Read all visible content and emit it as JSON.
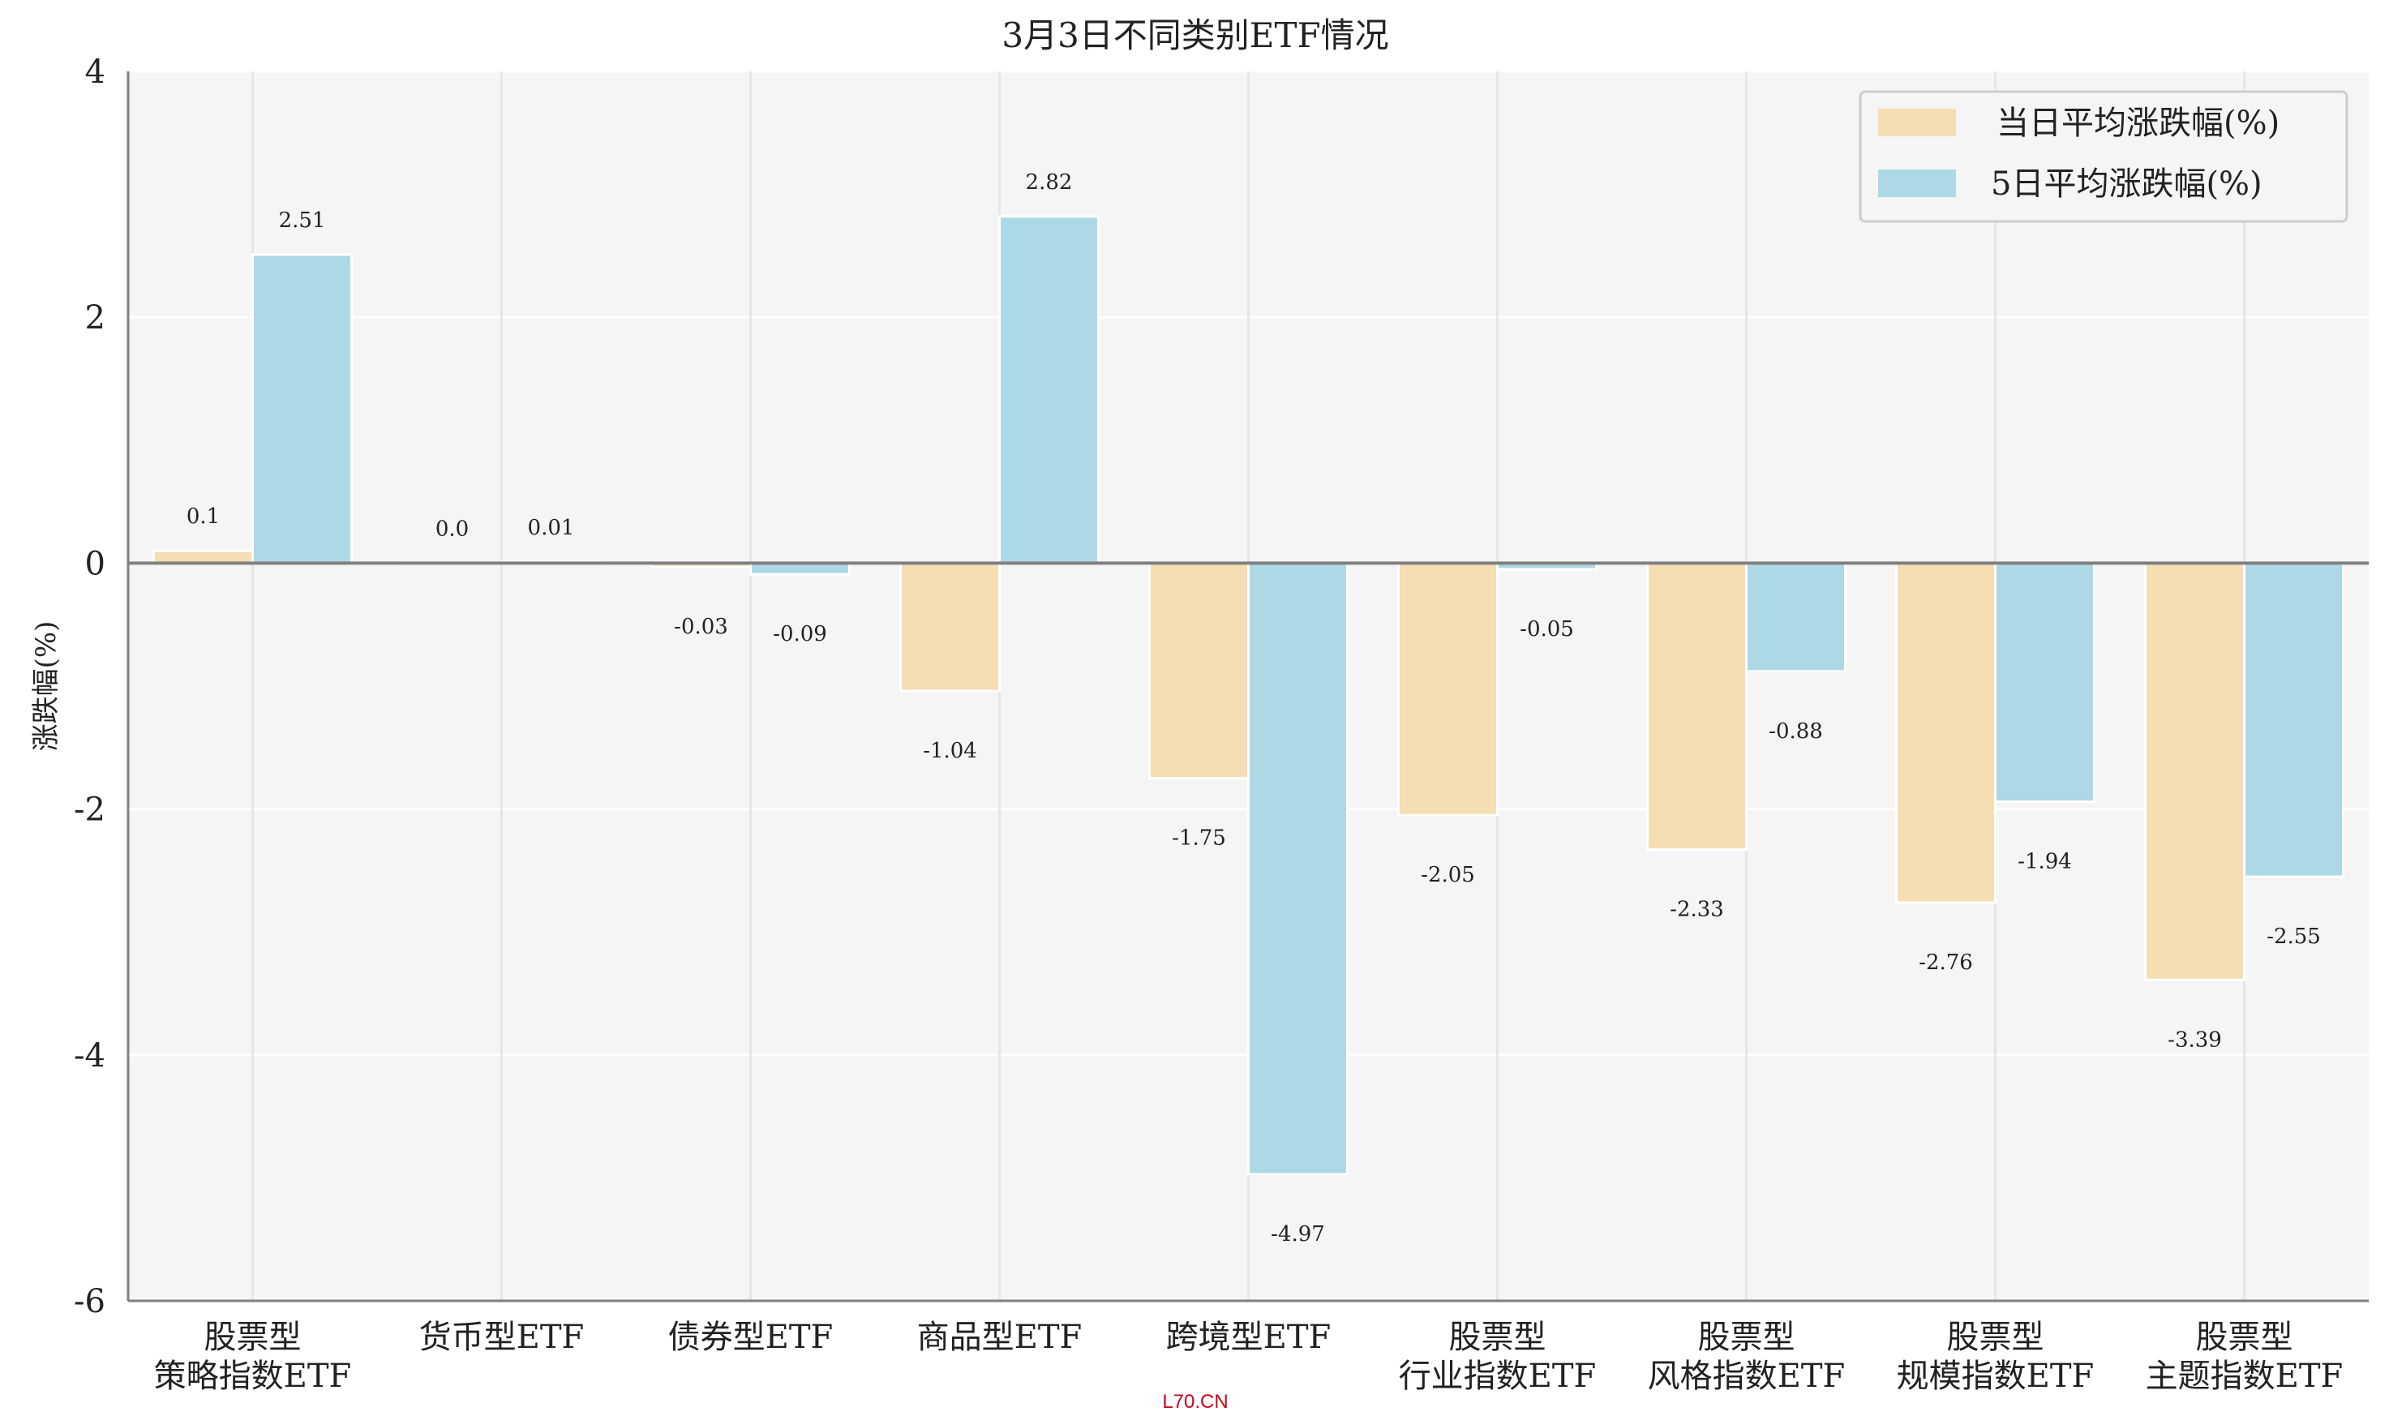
{
  "chart_data": {
    "type": "bar",
    "title": "3月3日不同类别ETF情况",
    "xlabel": "",
    "ylabel": "涨跌幅(%)",
    "ylim": [
      -6,
      4
    ],
    "yticks": [
      "4",
      "2",
      "0",
      "-2",
      "-4",
      "-6"
    ],
    "grid": true,
    "legend_position": "top-right",
    "categories": [
      [
        "股票型",
        "策略指数ETF"
      ],
      [
        "货币型ETF"
      ],
      [
        "债券型ETF"
      ],
      [
        "商品型ETF"
      ],
      [
        "跨境型ETF"
      ],
      [
        "股票型",
        "行业指数ETF"
      ],
      [
        "股票型",
        "风格指数ETF"
      ],
      [
        "股票型",
        "规模指数ETF"
      ],
      [
        "股票型",
        "主题指数ETF"
      ]
    ],
    "series": [
      {
        "name": "当日平均涨跌幅(%)",
        "color": "#f5deb3",
        "values": [
          0.1,
          0.0,
          -0.03,
          -1.04,
          -1.75,
          -2.05,
          -2.33,
          -2.76,
          -3.39
        ]
      },
      {
        "name": "5日平均涨跌幅(%)",
        "color": "#add8e6",
        "values": [
          2.51,
          0.01,
          -0.09,
          2.82,
          -4.97,
          -0.05,
          -0.88,
          -1.94,
          -2.55
        ]
      }
    ]
  },
  "watermark": "L70.CN"
}
